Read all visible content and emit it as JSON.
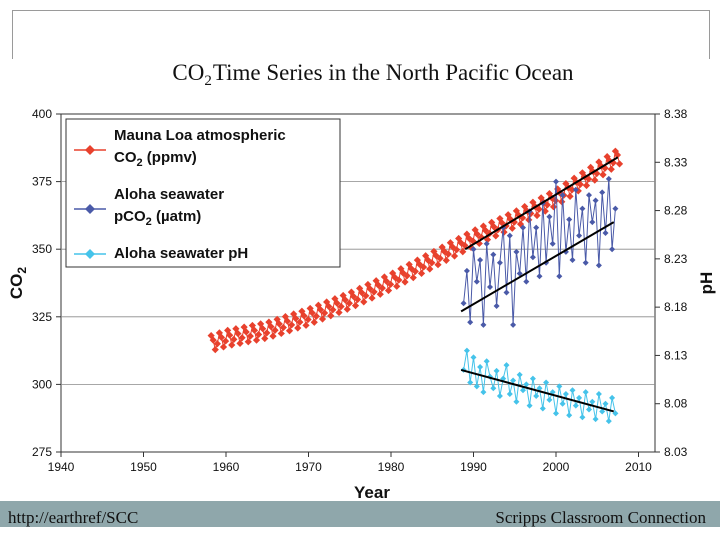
{
  "chart_data": {
    "type": "line",
    "title_prefix": "CO",
    "title_sub": "2",
    "title_suffix": "Time Series in the North Pacific Ocean",
    "xlabel": "Year",
    "ylabel_main": "CO",
    "ylabel_sub": "2",
    "y2label": "pH",
    "xlim": [
      1940,
      2012
    ],
    "ylim": [
      275,
      400
    ],
    "y2lim": [
      8.03,
      8.38
    ],
    "x_ticks": [
      "1940",
      "1950",
      "1960",
      "1970",
      "1980",
      "1990",
      "2000",
      "2010"
    ],
    "y_ticks": [
      "275",
      "300",
      "325",
      "350",
      "375",
      "400"
    ],
    "y2_ticks": [
      "8.03",
      "8.08",
      "8.13",
      "8.18",
      "8.23",
      "8.28",
      "8.33",
      "8.38"
    ],
    "legend_position": "top-left",
    "colors": {
      "mauna": "#e8412d",
      "aloha_pco2": "#4a5aa8",
      "aloha_ph": "#45c3ea",
      "trend": "#000000"
    },
    "legend": [
      {
        "line1": "Mauna Loa atmospheric",
        "line2_main": "CO",
        "line2_sub": "2",
        "line2_rest": " (ppmv)"
      },
      {
        "line1": "Aloha seawater",
        "line2_main": "pCO",
        "line2_sub": "2",
        "line2_rest": " (µatm)"
      },
      {
        "line1": "Aloha seawater pH"
      }
    ],
    "series": [
      {
        "name": "Mauna Loa atmospheric CO2 (ppmv)",
        "axis": "left",
        "start_year": 1958.2,
        "end_year": 2007.8,
        "anchor_years": [
          1958,
          1960,
          1965,
          1970,
          1975,
          1980,
          1985,
          1990,
          1995,
          2000,
          2005,
          2008
        ],
        "anchor_values": [
          315,
          317,
          320,
          325,
          331,
          338,
          346,
          354,
          361,
          369,
          379,
          385
        ],
        "seasonal_amplitude": 3
      },
      {
        "name": "Aloha seawater pCO2 (µatm)",
        "axis": "left",
        "years": [
          1988.8,
          1989.2,
          1989.6,
          1990.0,
          1990.4,
          1990.8,
          1991.2,
          1991.6,
          1992.0,
          1992.4,
          1992.8,
          1993.2,
          1993.6,
          1994.0,
          1994.4,
          1994.8,
          1995.2,
          1995.6,
          1996.0,
          1996.4,
          1996.8,
          1997.2,
          1997.6,
          1998.0,
          1998.4,
          1998.8,
          1999.2,
          1999.6,
          2000.0,
          2000.4,
          2000.8,
          2001.2,
          2001.6,
          2002.0,
          2002.4,
          2002.8,
          2003.2,
          2003.6,
          2004.0,
          2004.4,
          2004.8,
          2005.2,
          2005.6,
          2006.0,
          2006.4,
          2006.8,
          2007.2
        ],
        "values": [
          330,
          342,
          323,
          350,
          338,
          346,
          322,
          352,
          336,
          348,
          329,
          345,
          358,
          334,
          355,
          322,
          349,
          341,
          358,
          338,
          364,
          347,
          358,
          340,
          367,
          345,
          362,
          352,
          375,
          340,
          370,
          349,
          361,
          346,
          372,
          355,
          365,
          345,
          370,
          360,
          368,
          344,
          371,
          356,
          376,
          350,
          365
        ]
      },
      {
        "name": "Aloha seawater pH",
        "axis": "right",
        "years": [
          1988.8,
          1989.2,
          1989.6,
          1990.0,
          1990.4,
          1990.8,
          1991.2,
          1991.6,
          1992.0,
          1992.4,
          1992.8,
          1993.2,
          1993.6,
          1994.0,
          1994.4,
          1994.8,
          1995.2,
          1995.6,
          1996.0,
          1996.4,
          1996.8,
          1997.2,
          1997.6,
          1998.0,
          1998.4,
          1998.8,
          1999.2,
          1999.6,
          2000.0,
          2000.4,
          2000.8,
          2001.2,
          2001.6,
          2002.0,
          2002.4,
          2002.8,
          2003.2,
          2003.6,
          2004.0,
          2004.4,
          2004.8,
          2005.2,
          2005.6,
          2006.0,
          2006.4,
          2006.8,
          2007.2
        ],
        "values": [
          8.115,
          8.135,
          8.102,
          8.128,
          8.098,
          8.118,
          8.092,
          8.124,
          8.108,
          8.096,
          8.114,
          8.088,
          8.106,
          8.12,
          8.09,
          8.104,
          8.082,
          8.11,
          8.094,
          8.1,
          8.078,
          8.106,
          8.088,
          8.096,
          8.075,
          8.102,
          8.084,
          8.092,
          8.07,
          8.098,
          8.08,
          8.09,
          8.068,
          8.094,
          8.078,
          8.086,
          8.066,
          8.092,
          8.074,
          8.082,
          8.064,
          8.09,
          8.072,
          8.08,
          8.062,
          8.086,
          8.07
        ]
      }
    ],
    "trend_lines": [
      {
        "name": "mauna-trend",
        "axis": "left",
        "x": [
          1989,
          2007.5
        ],
        "y": [
          350,
          384
        ]
      },
      {
        "name": "pco2-trend",
        "axis": "left",
        "x": [
          1988.5,
          2007
        ],
        "y": [
          327,
          360
        ]
      },
      {
        "name": "ph-trend",
        "axis": "right",
        "x": [
          1988.5,
          2007
        ],
        "y": [
          8.115,
          8.072
        ]
      }
    ]
  },
  "footer": {
    "left": "http://earthref/SCC",
    "right": "Scripps Classroom Connection"
  }
}
